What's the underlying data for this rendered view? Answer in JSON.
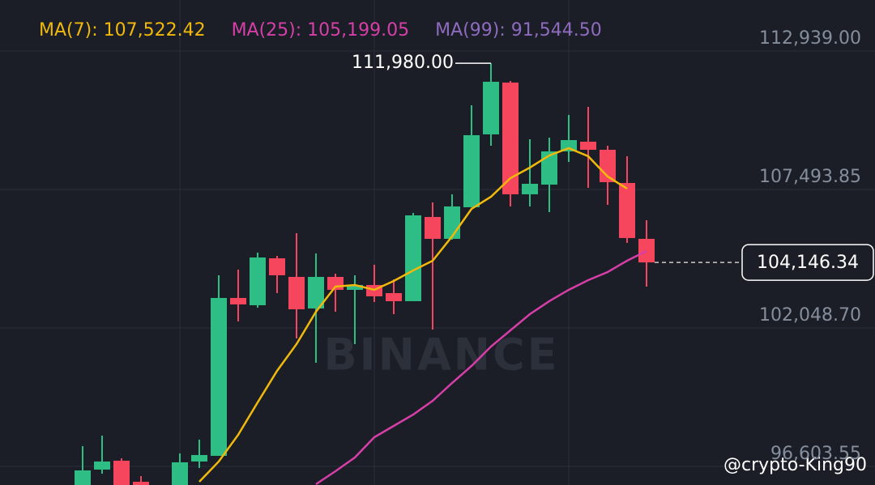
{
  "chart_data": {
    "type": "candlestick",
    "ylim": [
      95393,
      114467
    ],
    "yticks": [
      {
        "value": 112939,
        "label": "112,939.00"
      },
      {
        "value": 107493.85,
        "label": "107,493.85"
      },
      {
        "value": 102048.7,
        "label": "102,048.70"
      },
      {
        "value": 96603.55,
        "label": "96,603.55"
      }
    ],
    "grid": true,
    "up_color": "#2ebd85",
    "down_color": "#f6465d",
    "open": [
      95300,
      95999,
      96349,
      95521,
      null,
      95300,
      96317,
      96540,
      102749,
      102463,
      104309,
      103577,
      102335,
      103577,
      103068,
      103259,
      102940,
      102622,
      105934,
      105074,
      106316,
      109182,
      111220,
      106826,
      107207,
      108513,
      108895,
      108577,
      107271,
      105074
    ],
    "high": [
      96922,
      97336,
      96444,
      95744,
      null,
      96636,
      97177,
      103641,
      103864,
      104533,
      104405,
      105297,
      104501,
      103704,
      103641,
      104055,
      103482,
      106093,
      106507,
      106826,
      110328,
      111980,
      111283,
      108990,
      109054,
      109946,
      110264,
      108736,
      108322,
      105807
    ],
    "low": [
      95200,
      95839,
      95200,
      95200,
      null,
      95200,
      96062,
      96540,
      101826,
      102367,
      102940,
      101157,
      100202,
      102208,
      100934,
      102590,
      102112,
      102622,
      101508,
      105042,
      106316,
      108736,
      106348,
      106348,
      106124,
      108099,
      107080,
      106411,
      104915,
      103195
    ],
    "close": [
      95967,
      96317,
      95300,
      95300,
      null,
      96285,
      96572,
      102749,
      102495,
      104341,
      103641,
      102303,
      103577,
      103068,
      103259,
      102813,
      102622,
      105997,
      105074,
      106348,
      109150,
      111252,
      106826,
      107239,
      108513,
      108958,
      108577,
      107303,
      105106,
      104146.34
    ],
    "series": [
      {
        "name": "MA(7)",
        "legend": "MA(7): 107,522.42",
        "color": "#f0b90b",
        "values": [
          null,
          null,
          null,
          null,
          null,
          null,
          95521,
          96317,
          97368,
          98642,
          99883,
          100934,
          102208,
          103195,
          103259,
          103068,
          103418,
          103832,
          104214,
          105170,
          106252,
          106730,
          107462,
          107876,
          108354,
          108641,
          108322,
          107526,
          107048,
          null
        ]
      },
      {
        "name": "MA(25)",
        "legend": "MA(25): 105,199.05",
        "color": "#d63fa8",
        "values": [
          null,
          null,
          null,
          null,
          null,
          null,
          null,
          null,
          null,
          null,
          null,
          null,
          95425,
          95935,
          96476,
          97272,
          97718,
          98163,
          98705,
          99405,
          100074,
          100838,
          101475,
          102112,
          102622,
          103068,
          103450,
          103768,
          104214,
          104596
        ]
      },
      {
        "name": "MA(99)",
        "legend": "MA(99): 91,544.50",
        "color": "#8e6bbf",
        "values": [
          null,
          null,
          null,
          null,
          null,
          null,
          null,
          null,
          null,
          null,
          null,
          null,
          null,
          null,
          null,
          null,
          null,
          null,
          null,
          null,
          null,
          null,
          null,
          null,
          null,
          null,
          null,
          null,
          null,
          null
        ]
      }
    ],
    "max_marker": {
      "value": 111980,
      "label": "111,980.00"
    },
    "current_price": {
      "value": 104146.34,
      "label": "104,146.34"
    },
    "watermark": "BINANCE",
    "credit": "@crypto-King90"
  }
}
